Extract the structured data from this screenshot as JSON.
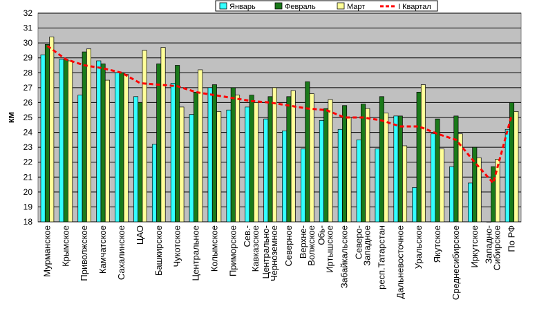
{
  "chart_data": {
    "type": "bar",
    "ylabel": "км",
    "ylim": [
      18,
      32
    ],
    "yticks": [
      18,
      19,
      20,
      21,
      22,
      23,
      24,
      25,
      26,
      27,
      28,
      29,
      30,
      31,
      32
    ],
    "grid": true,
    "legend_position": "top-right",
    "categories": [
      "Мурманское",
      "Крымское",
      "Приволжское",
      "Камчатское",
      "Сахалинское",
      "ЦАО",
      "Башкирское",
      "Чукотское",
      "Центральное",
      "Колымское",
      "Приморское",
      "Сев.-Кавказское",
      "Центрально-Черноземное",
      "Северное",
      "Верхне-Волжское",
      "Обь-Иртышское",
      "Забайкальское",
      "Северо-Западное",
      "респ.Татарстан",
      "Дальневосточное",
      "Уральское",
      "Якутское",
      "Среднесибирское",
      "Иркутское",
      "Западно-Сибирское",
      "По РФ"
    ],
    "tick_labels": [
      [
        "Мурманское"
      ],
      [
        "Крымское"
      ],
      [
        "Приволжское"
      ],
      [
        "Камчатское"
      ],
      [
        "Сахалинское"
      ],
      [
        "ЦАО"
      ],
      [
        "Башкирское"
      ],
      [
        "Чукотское"
      ],
      [
        "Центральное"
      ],
      [
        "Колымское"
      ],
      [
        "Приморское"
      ],
      [
        "Сев.-",
        "Кавказское"
      ],
      [
        "Центрально-",
        "Черноземное"
      ],
      [
        "Северное"
      ],
      [
        "Верхне-",
        "Волжское"
      ],
      [
        "Обь-",
        "Иртышское"
      ],
      [
        "Забайкальское"
      ],
      [
        "Северо-",
        "Западное"
      ],
      [
        "респ.Татарстан"
      ],
      [
        "Дальневосточное"
      ],
      [
        "Уральское"
      ],
      [
        "Якутское"
      ],
      [
        "Среднесибирское"
      ],
      [
        "Иркутское"
      ],
      [
        "Западно-",
        "Сибирское"
      ],
      [
        "По РФ"
      ]
    ],
    "series": [
      {
        "name": "Январь",
        "color": "#33ffff",
        "values": [
          29.2,
          28.9,
          26.5,
          28.8,
          28.0,
          26.4,
          23.2,
          27.3,
          25.2,
          27.0,
          25.5,
          25.7,
          24.9,
          24.1,
          22.9,
          24.8,
          24.2,
          23.5,
          22.9,
          25.1,
          20.3,
          23.9,
          21.7,
          20.6,
          18.0,
          24.2
        ]
      },
      {
        "name": "Февраль",
        "color": "#1a7a1a",
        "values": [
          29.9,
          28.9,
          29.4,
          28.6,
          28.0,
          26.0,
          28.6,
          28.5,
          26.7,
          27.2,
          27.0,
          26.5,
          26.4,
          26.4,
          27.4,
          25.6,
          25.8,
          25.9,
          26.4,
          25.1,
          26.7,
          24.9,
          25.1,
          23.0,
          21.7,
          26.0
        ]
      },
      {
        "name": "Март",
        "color": "#ffff99",
        "values": [
          30.4,
          28.8,
          29.6,
          27.5,
          27.9,
          29.5,
          29.7,
          25.7,
          28.2,
          25.4,
          26.5,
          26.0,
          27.0,
          26.8,
          26.6,
          26.2,
          25.0,
          25.6,
          25.3,
          23.1,
          27.2,
          22.9,
          23.9,
          22.3,
          22.2,
          25.4
        ]
      },
      {
        "name": "I Квартал",
        "color": "#ff0000",
        "type": "line",
        "values": [
          29.8,
          28.9,
          28.5,
          28.3,
          28.0,
          27.3,
          27.2,
          27.1,
          26.7,
          26.5,
          26.3,
          26.1,
          26.0,
          25.8,
          25.6,
          25.5,
          25.0,
          25.0,
          24.8,
          24.4,
          24.4,
          23.9,
          23.5,
          22.0,
          20.6,
          25.2
        ]
      }
    ]
  }
}
